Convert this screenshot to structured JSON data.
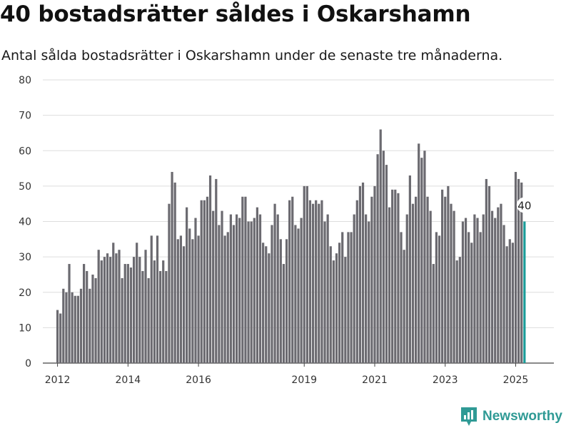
{
  "title": "40 bostadsrätter såldes i Oskarshamn",
  "subtitle": "Antal sålda bostadsrätter i Oskarshamn under de senaste tre månaderna.",
  "brand": {
    "name": "Newsworthy",
    "logo_icon": "bar-chart-pin-icon",
    "color": "#2f9a95"
  },
  "colors": {
    "bar": "#6b6a70",
    "highlight": "#1a9c99",
    "grid": "#dddddd"
  },
  "chart_data": {
    "type": "bar",
    "title": "40 bostadsrätter såldes i Oskarshamn",
    "subtitle": "Antal sålda bostadsrätter i Oskarshamn under de senaste tre månaderna.",
    "xlabel": "",
    "ylabel": "",
    "ylim": [
      0,
      80
    ],
    "yticks": [
      0,
      10,
      20,
      30,
      40,
      50,
      60,
      70,
      80
    ],
    "xticks": [
      "2012",
      "2014",
      "2016",
      "2019",
      "2021",
      "2023",
      "2025"
    ],
    "xlim": [
      "2011-08",
      "2026-02"
    ],
    "grid": true,
    "legend": "none",
    "highlight_label": "40",
    "x_start": "2012-01",
    "x_step": "month",
    "values": [
      15,
      14,
      21,
      20,
      28,
      20,
      19,
      19,
      21,
      28,
      26,
      21,
      25,
      24,
      32,
      29,
      30,
      31,
      30,
      34,
      31,
      32,
      24,
      28,
      28,
      27,
      30,
      34,
      30,
      26,
      32,
      24,
      36,
      29,
      36,
      26,
      29,
      26,
      45,
      54,
      51,
      35,
      36,
      33,
      44,
      38,
      35,
      41,
      36,
      46,
      46,
      47,
      53,
      43,
      52,
      39,
      43,
      36,
      37,
      42,
      39,
      42,
      41,
      47,
      47,
      40,
      40,
      41,
      44,
      42,
      34,
      33,
      31,
      39,
      45,
      42,
      35,
      28,
      35,
      46,
      47,
      39,
      38,
      41,
      50,
      50,
      46,
      45,
      46,
      45,
      46,
      40,
      42,
      33,
      29,
      31,
      34,
      37,
      30,
      37,
      37,
      42,
      46,
      50,
      51,
      42,
      40,
      47,
      50,
      59,
      66,
      60,
      56,
      44,
      49,
      49,
      48,
      37,
      32,
      42,
      53,
      45,
      47,
      62,
      58,
      60,
      47,
      43,
      28,
      37,
      36,
      49,
      47,
      50,
      45,
      43,
      29,
      30,
      40,
      41,
      37,
      34,
      42,
      41,
      37,
      42,
      52,
      50,
      43,
      41,
      44,
      45,
      39,
      33,
      35,
      34,
      54,
      52,
      51,
      40
    ]
  }
}
